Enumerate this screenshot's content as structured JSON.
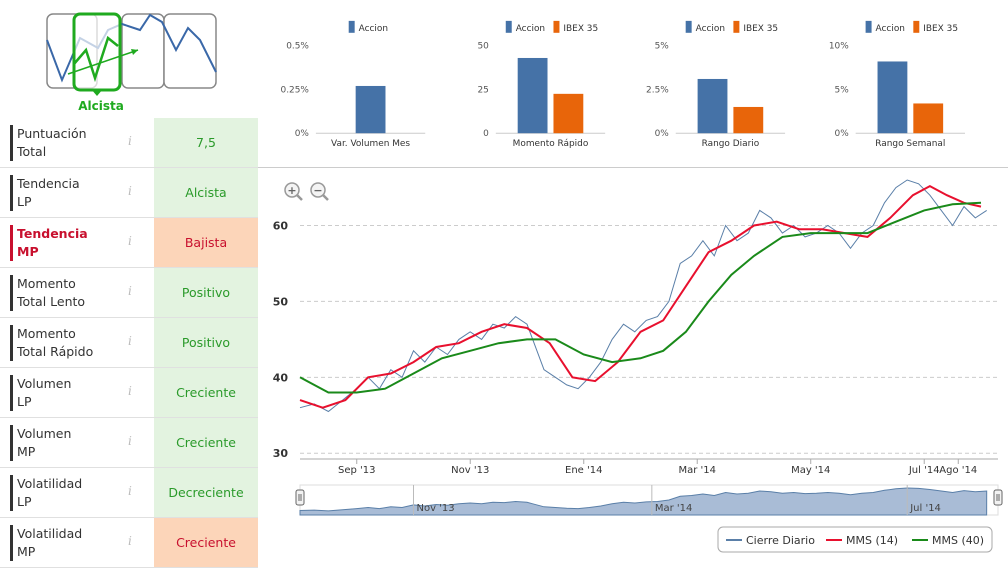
{
  "trend_widget": {
    "label": "Alcista"
  },
  "indicators": [
    {
      "label_l1": "Puntuación",
      "label_l2": "Total",
      "value": "7,5",
      "status": "green",
      "highlight": false
    },
    {
      "label_l1": "Tendencia",
      "label_l2": "LP",
      "value": "Alcista",
      "status": "green",
      "highlight": false
    },
    {
      "label_l1": "Tendencia",
      "label_l2": "MP",
      "value": "Bajista",
      "status": "orange",
      "highlight": true
    },
    {
      "label_l1": "Momento",
      "label_l2": "Total Lento",
      "value": "Positivo",
      "status": "green",
      "highlight": false
    },
    {
      "label_l1": "Momento",
      "label_l2": "Total Rápido",
      "value": "Positivo",
      "status": "green",
      "highlight": false
    },
    {
      "label_l1": "Volumen",
      "label_l2": "LP",
      "value": "Creciente",
      "status": "green",
      "highlight": false
    },
    {
      "label_l1": "Volumen",
      "label_l2": "MP",
      "value": "Creciente",
      "status": "green",
      "highlight": false
    },
    {
      "label_l1": "Volatilidad",
      "label_l2": "LP",
      "value": "Decreciente",
      "status": "green",
      "highlight": false
    },
    {
      "label_l1": "Volatilidad",
      "label_l2": "MP",
      "value": "Creciente",
      "status": "orange",
      "highlight": false
    }
  ],
  "info_glyph": "i",
  "colors": {
    "accion": "#4572a7",
    "ibex": "#e8650a",
    "cierre": "#5a7fa8",
    "mms14": "#e8102e",
    "mms40": "#1a8a1a",
    "green_text": "#2a9a2a"
  },
  "chart_data": [
    {
      "type": "bar",
      "title": "Var. Volumen Mes",
      "legend": [
        "Accion"
      ],
      "yticks": [
        "0%",
        "0.25%",
        "0.5%"
      ],
      "ylim": [
        0,
        0.5
      ],
      "series": [
        {
          "name": "Accion",
          "values": [
            0.27
          ]
        }
      ]
    },
    {
      "type": "bar",
      "title": "Momento Rápido",
      "legend": [
        "Accion",
        "IBEX 35"
      ],
      "yticks": [
        "0",
        "25",
        "50"
      ],
      "ylim": [
        0,
        50
      ],
      "series": [
        {
          "name": "Accion",
          "values": [
            43
          ]
        },
        {
          "name": "IBEX 35",
          "values": [
            22.5
          ]
        }
      ]
    },
    {
      "type": "bar",
      "title": "Rango Diario",
      "legend": [
        "Accion",
        "IBEX 35"
      ],
      "yticks": [
        "0%",
        "2.5%",
        "5%"
      ],
      "ylim": [
        0,
        5
      ],
      "series": [
        {
          "name": "Accion",
          "values": [
            3.1
          ]
        },
        {
          "name": "IBEX 35",
          "values": [
            1.5
          ]
        }
      ]
    },
    {
      "type": "bar",
      "title": "Rango Semanal",
      "legend": [
        "Accion",
        "IBEX 35"
      ],
      "yticks": [
        "0%",
        "5%",
        "10%"
      ],
      "ylim": [
        0,
        10
      ],
      "series": [
        {
          "name": "Accion",
          "values": [
            8.2
          ]
        },
        {
          "name": "IBEX 35",
          "values": [
            3.4
          ]
        }
      ]
    },
    {
      "type": "line",
      "xlabels": [
        "Sep '13",
        "Nov '13",
        "Ene '14",
        "Mar '14",
        "May '14",
        "Jul '14",
        "Ago '14"
      ],
      "xlabel_pos": [
        1.0,
        3.0,
        5.0,
        7.0,
        9.0,
        11.0,
        11.6
      ],
      "x_range": [
        0,
        12.3
      ],
      "yticks": [
        30,
        40,
        50,
        60
      ],
      "ylim": [
        29.5,
        66
      ],
      "series": [
        {
          "name": "Cierre Diario",
          "points": [
            [
              0,
              36
            ],
            [
              0.25,
              36.5
            ],
            [
              0.5,
              35.5
            ],
            [
              0.75,
              37
            ],
            [
              1.0,
              38.5
            ],
            [
              1.2,
              40
            ],
            [
              1.4,
              38.5
            ],
            [
              1.6,
              41
            ],
            [
              1.8,
              40
            ],
            [
              2.0,
              43.5
            ],
            [
              2.2,
              42
            ],
            [
              2.4,
              44
            ],
            [
              2.6,
              43
            ],
            [
              2.8,
              45
            ],
            [
              3.0,
              46
            ],
            [
              3.2,
              45
            ],
            [
              3.4,
              47
            ],
            [
              3.6,
              46.5
            ],
            [
              3.8,
              48
            ],
            [
              4.0,
              47
            ],
            [
              4.1,
              45
            ],
            [
              4.3,
              41
            ],
            [
              4.5,
              40
            ],
            [
              4.7,
              39
            ],
            [
              4.9,
              38.5
            ],
            [
              5.1,
              40
            ],
            [
              5.3,
              42
            ],
            [
              5.5,
              45
            ],
            [
              5.7,
              47
            ],
            [
              5.9,
              46
            ],
            [
              6.1,
              47.5
            ],
            [
              6.3,
              48
            ],
            [
              6.5,
              50
            ],
            [
              6.7,
              55
            ],
            [
              6.9,
              56
            ],
            [
              7.1,
              58
            ],
            [
              7.3,
              56
            ],
            [
              7.5,
              60
            ],
            [
              7.7,
              58
            ],
            [
              7.9,
              59
            ],
            [
              8.1,
              62
            ],
            [
              8.3,
              61
            ],
            [
              8.5,
              59
            ],
            [
              8.7,
              60
            ],
            [
              8.9,
              58.5
            ],
            [
              9.1,
              59
            ],
            [
              9.3,
              60
            ],
            [
              9.5,
              59
            ],
            [
              9.7,
              57
            ],
            [
              9.9,
              59
            ],
            [
              10.1,
              60
            ],
            [
              10.3,
              63
            ],
            [
              10.5,
              65
            ],
            [
              10.7,
              66
            ],
            [
              10.9,
              65.5
            ],
            [
              11.1,
              64
            ],
            [
              11.3,
              62
            ],
            [
              11.5,
              60
            ],
            [
              11.7,
              62.5
            ],
            [
              11.9,
              61
            ],
            [
              12.1,
              62
            ]
          ]
        },
        {
          "name": "MMS (14)",
          "points": [
            [
              0,
              37
            ],
            [
              0.4,
              36
            ],
            [
              0.8,
              37
            ],
            [
              1.2,
              40
            ],
            [
              1.6,
              40.5
            ],
            [
              2.0,
              42
            ],
            [
              2.4,
              44
            ],
            [
              2.8,
              44.5
            ],
            [
              3.2,
              46
            ],
            [
              3.6,
              47
            ],
            [
              4.0,
              46.5
            ],
            [
              4.4,
              44.5
            ],
            [
              4.8,
              40
            ],
            [
              5.2,
              39.5
            ],
            [
              5.6,
              42
            ],
            [
              6.0,
              46
            ],
            [
              6.4,
              47.5
            ],
            [
              6.8,
              52
            ],
            [
              7.2,
              56.5
            ],
            [
              7.6,
              58
            ],
            [
              8.0,
              60
            ],
            [
              8.4,
              60.5
            ],
            [
              8.8,
              59.5
            ],
            [
              9.2,
              59.5
            ],
            [
              9.6,
              59
            ],
            [
              10.0,
              58.5
            ],
            [
              10.4,
              61
            ],
            [
              10.8,
              64
            ],
            [
              11.1,
              65.2
            ],
            [
              11.4,
              64
            ],
            [
              11.7,
              63
            ],
            [
              12.0,
              62.5
            ]
          ]
        },
        {
          "name": "MMS (40)",
          "points": [
            [
              0,
              40
            ],
            [
              0.5,
              38
            ],
            [
              1.0,
              38
            ],
            [
              1.5,
              38.5
            ],
            [
              2.0,
              40.5
            ],
            [
              2.5,
              42.5
            ],
            [
              3.0,
              43.5
            ],
            [
              3.5,
              44.5
            ],
            [
              4.0,
              45
            ],
            [
              4.5,
              45
            ],
            [
              5.0,
              43
            ],
            [
              5.5,
              42
            ],
            [
              6.0,
              42.5
            ],
            [
              6.4,
              43.5
            ],
            [
              6.8,
              46
            ],
            [
              7.2,
              50
            ],
            [
              7.6,
              53.5
            ],
            [
              8.0,
              56
            ],
            [
              8.5,
              58.5
            ],
            [
              9.0,
              59
            ],
            [
              9.5,
              59
            ],
            [
              10.0,
              59
            ],
            [
              10.5,
              60.5
            ],
            [
              11.0,
              62
            ],
            [
              11.5,
              62.8
            ],
            [
              12.0,
              63
            ]
          ]
        }
      ]
    }
  ],
  "navigator": {
    "labels": [
      "Nov '13",
      "Mar '14",
      "Jul '14"
    ]
  }
}
